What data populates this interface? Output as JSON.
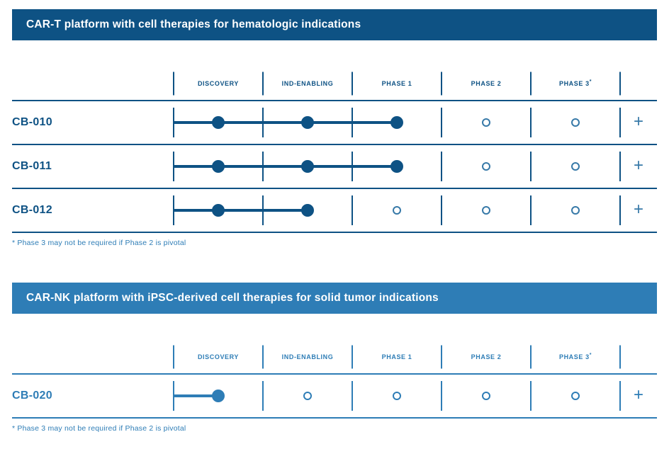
{
  "colors": {
    "navy": "#0e5284",
    "light_blue": "#2e7db6",
    "navy_open_circle": "#3779a8",
    "header_text": "#ffffff",
    "footnote_text": "#2e7db6"
  },
  "sections": [
    {
      "title": "CAR-T platform with cell therapies for hematologic indications",
      "theme": {
        "bar": "#0e5284",
        "line": "#0e5284",
        "dot": "#0e5284",
        "circle": "#3779a8"
      },
      "columns": [
        "DISCOVERY",
        "IND-ENABLING",
        "PHASE 1",
        "PHASE 2",
        "PHASE 3*"
      ],
      "rows": [
        {
          "program": "CB-010",
          "stages": [
            "filled",
            "filled",
            "filled",
            "open",
            "open"
          ],
          "plus": "+"
        },
        {
          "program": "CB-011",
          "stages": [
            "filled",
            "filled",
            "filled",
            "open",
            "open"
          ],
          "plus": "+"
        },
        {
          "program": "CB-012",
          "stages": [
            "filled",
            "filled",
            "open",
            "open",
            "open"
          ],
          "plus": "+"
        }
      ],
      "footnote": "* Phase 3 may not be required if Phase 2 is pivotal"
    },
    {
      "title": "CAR-NK platform with iPSC-derived cell therapies for solid tumor indications",
      "theme": {
        "bar": "#2e7db6",
        "line": "#2e7db6",
        "dot": "#2e7db6",
        "circle": "#2e7db6"
      },
      "columns": [
        "DISCOVERY",
        "IND-ENABLING",
        "PHASE 1",
        "PHASE 2",
        "PHASE 3*"
      ],
      "rows": [
        {
          "program": "CB-020",
          "stages": [
            "filled",
            "open",
            "open",
            "open",
            "open"
          ],
          "plus": "+"
        }
      ],
      "footnote": "* Phase 3 may not be required if Phase 2 is pivotal"
    }
  ]
}
